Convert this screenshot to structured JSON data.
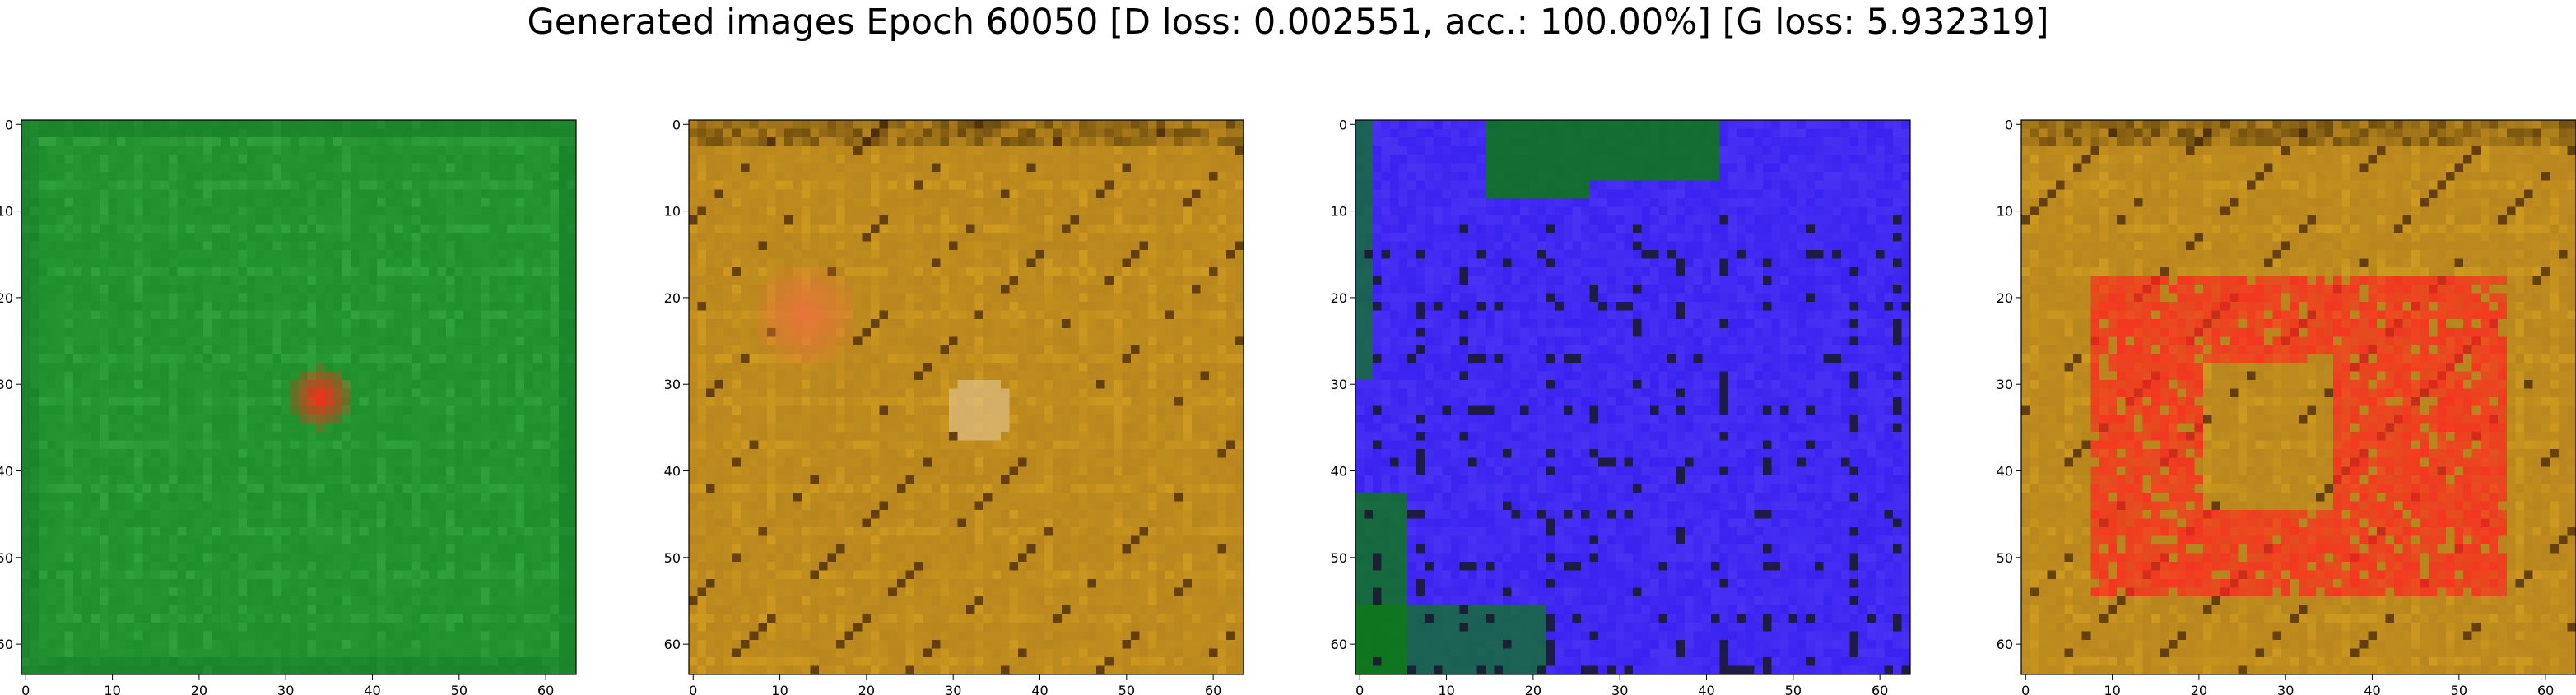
{
  "figure": {
    "title": "Generated images Epoch 60050 [D loss: 0.002551, acc.: 100.00%] [G loss: 5.932319]"
  },
  "chart_data": [
    {
      "type": "heatmap",
      "panel": 1,
      "xlim": [
        0,
        63
      ],
      "ylim": [
        63,
        0
      ],
      "xticks": [
        "0",
        "10",
        "20",
        "30",
        "40",
        "50",
        "60"
      ],
      "yticks": [
        "0",
        "10",
        "20",
        "30",
        "40",
        "50",
        "60"
      ],
      "palette": {
        "base": "#1f8f2c",
        "texture": "#3fb24a",
        "accent": "#ff2a1a"
      }
    },
    {
      "type": "heatmap",
      "panel": 2,
      "xlim": [
        0,
        63
      ],
      "ylim": [
        63,
        0
      ],
      "xticks": [
        "0",
        "10",
        "20",
        "30",
        "40",
        "50",
        "60"
      ],
      "yticks": [
        "0",
        "10",
        "20",
        "30",
        "40",
        "50",
        "60"
      ],
      "palette": {
        "base": "#b8861e",
        "texture": "#e0aa20",
        "accent": "#e8743a"
      }
    },
    {
      "type": "heatmap",
      "panel": 3,
      "xlim": [
        0,
        63
      ],
      "ylim": [
        63,
        0
      ],
      "xticks": [
        "0",
        "10",
        "20",
        "30",
        "40",
        "50",
        "60"
      ],
      "yticks": [
        "0",
        "10",
        "20",
        "30",
        "40",
        "50",
        "60"
      ],
      "palette": {
        "base": "#3a22f0",
        "texture": "#0c7a12",
        "accent": "#1a1a30"
      }
    },
    {
      "type": "heatmap",
      "panel": 4,
      "xlim": [
        0,
        63
      ],
      "ylim": [
        63,
        0
      ],
      "xticks": [
        "0",
        "10",
        "20",
        "30",
        "40",
        "50",
        "60"
      ],
      "yticks": [
        "0",
        "10",
        "20",
        "30",
        "40",
        "50",
        "60"
      ],
      "palette": {
        "base": "#b8861e",
        "texture": "#e0aa20",
        "accent": "#ff2420"
      }
    }
  ]
}
